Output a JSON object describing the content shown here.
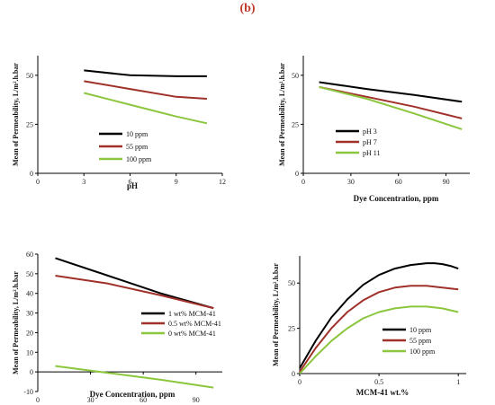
{
  "figure_label": "(b)",
  "chart_data": [
    {
      "type": "line",
      "x": [
        3,
        6,
        9,
        11
      ],
      "series": [
        {
          "name": "10 ppm",
          "color": "#000000",
          "values": [
            52.5,
            50,
            49.5,
            49.5
          ]
        },
        {
          "name": "55 ppm",
          "color": "#a0302a",
          "values": [
            47,
            43,
            39,
            38
          ]
        },
        {
          "name": "100 ppm",
          "color": "#8cc63f",
          "values": [
            41,
            35,
            29,
            25.5
          ]
        }
      ],
      "xlabel": "pH",
      "ylabel": "Mean of Permeability,  L/m².h.bar",
      "xlim": [
        0,
        12
      ],
      "ylim": [
        0,
        60
      ],
      "xticks": [
        "0",
        "3",
        "6",
        "9",
        "12"
      ],
      "yticks": [
        "0",
        "25",
        "50"
      ],
      "legend": "center"
    },
    {
      "type": "line",
      "x": [
        10,
        40,
        70,
        100
      ],
      "series": [
        {
          "name": "pH 3",
          "color": "#000000",
          "values": [
            46.5,
            43,
            40,
            36.5
          ]
        },
        {
          "name": "pH 7",
          "color": "#a0302a",
          "values": [
            44,
            39,
            34,
            28
          ]
        },
        {
          "name": "pH 11",
          "color": "#8cc63f",
          "values": [
            44,
            38,
            30.5,
            22.5
          ]
        }
      ],
      "xlabel": "Dye Concentration,  ppm",
      "ylabel": "Mean of Permeability,  L/m².h.bar",
      "xlim": [
        0,
        105
      ],
      "ylim": [
        0,
        60
      ],
      "xticks": [
        "0",
        "30",
        "60",
        "90"
      ],
      "yticks": [
        "0",
        "25",
        "50"
      ],
      "legend": "lower-left"
    },
    {
      "type": "line",
      "x": [
        10,
        40,
        70,
        100
      ],
      "series": [
        {
          "name": "1 wt% MCM-41",
          "color": "#000000",
          "values": [
            58,
            49,
            40,
            32.5
          ]
        },
        {
          "name": "0.5 wt% MCM-41",
          "color": "#a0302a",
          "values": [
            49,
            45,
            39,
            32.5
          ]
        },
        {
          "name": "0 wt% MCM-41",
          "color": "#8cc63f",
          "values": [
            3,
            -0.5,
            -4,
            -8
          ]
        }
      ],
      "xlabel": "Dye Concentration,  ppm",
      "ylabel": "Mean of Permeability,  L/m².h.bar",
      "xlim": [
        0,
        105
      ],
      "ylim": [
        -10,
        60
      ],
      "xticks": [
        "0",
        "30",
        "60",
        "90"
      ],
      "yticks": [
        "-10",
        "0",
        "10",
        "20",
        "30",
        "40",
        "50",
        "60"
      ],
      "legend": "center-right"
    },
    {
      "type": "line",
      "x": [
        0,
        0.1,
        0.2,
        0.3,
        0.4,
        0.5,
        0.6,
        0.7,
        0.8,
        0.85,
        0.9,
        0.95,
        1.0
      ],
      "series": [
        {
          "name": "10 ppm",
          "color": "#000000",
          "values": [
            3,
            18,
            31,
            41,
            49,
            54.5,
            58,
            60,
            61,
            61,
            60.5,
            59.5,
            58
          ]
        },
        {
          "name": "55 ppm",
          "color": "#a0302a",
          "values": [
            1,
            14,
            25,
            34,
            40.5,
            45,
            47.5,
            48.5,
            48.5,
            48,
            47.5,
            47,
            46.5
          ]
        },
        {
          "name": "100 ppm",
          "color": "#8cc63f",
          "values": [
            0,
            9.5,
            18,
            25,
            30.5,
            34,
            36,
            37,
            37,
            36.5,
            36,
            35,
            34
          ]
        }
      ],
      "xlabel": "MCM-41  wt.%",
      "ylabel": "Mean of Permeability,  L/m².h.bar",
      "xlim": [
        0,
        1.05
      ],
      "ylim": [
        0,
        65
      ],
      "xticks": [
        "0",
        "0.5",
        "1"
      ],
      "yticks": [
        "0",
        "25",
        "50"
      ],
      "legend": "lower-right"
    }
  ]
}
